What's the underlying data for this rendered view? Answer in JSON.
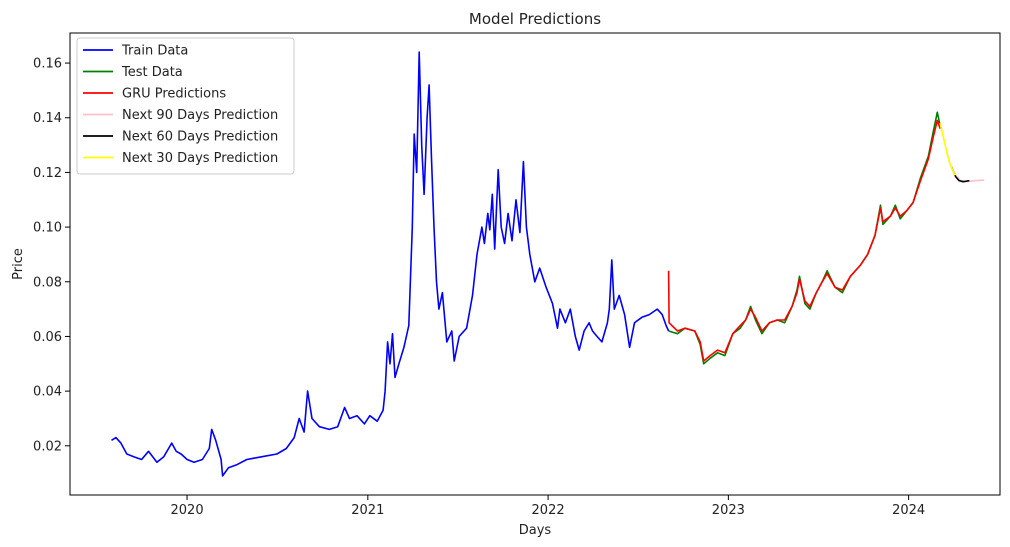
{
  "chart_data": {
    "type": "line",
    "title": "Model Predictions",
    "xlabel": "Days",
    "ylabel": "Price",
    "xlim": [
      "2019-05-09",
      "2024-07-04"
    ],
    "ylim": [
      0.002,
      0.171
    ],
    "grid": false,
    "legend_position": "top-left",
    "x_ticks": [
      {
        "date": "2020-01-01",
        "label": "2020"
      },
      {
        "date": "2021-01-01",
        "label": "2021"
      },
      {
        "date": "2022-01-01",
        "label": "2022"
      },
      {
        "date": "2023-01-01",
        "label": "2023"
      },
      {
        "date": "2024-01-01",
        "label": "2024"
      }
    ],
    "y_ticks": [
      {
        "value": 0.02,
        "label": "0.02"
      },
      {
        "value": 0.04,
        "label": "0.04"
      },
      {
        "value": 0.06,
        "label": "0.06"
      },
      {
        "value": 0.08,
        "label": "0.08"
      },
      {
        "value": 0.1,
        "label": "0.10"
      },
      {
        "value": 0.12,
        "label": "0.12"
      },
      {
        "value": 0.14,
        "label": "0.14"
      },
      {
        "value": 0.16,
        "label": "0.16"
      }
    ],
    "series": [
      {
        "name": "Train Data",
        "color": "#0000ff",
        "points": [
          [
            "2019-08-01",
            0.022
          ],
          [
            "2019-08-10",
            0.023
          ],
          [
            "2019-08-20",
            0.021
          ],
          [
            "2019-09-01",
            0.017
          ],
          [
            "2019-09-15",
            0.016
          ],
          [
            "2019-10-01",
            0.015
          ],
          [
            "2019-10-15",
            0.018
          ],
          [
            "2019-11-01",
            0.014
          ],
          [
            "2019-11-15",
            0.016
          ],
          [
            "2019-12-01",
            0.021
          ],
          [
            "2019-12-10",
            0.018
          ],
          [
            "2019-12-20",
            0.017
          ],
          [
            "2020-01-01",
            0.015
          ],
          [
            "2020-01-15",
            0.014
          ],
          [
            "2020-02-01",
            0.015
          ],
          [
            "2020-02-15",
            0.019
          ],
          [
            "2020-02-20",
            0.026
          ],
          [
            "2020-02-28",
            0.022
          ],
          [
            "2020-03-10",
            0.015
          ],
          [
            "2020-03-13",
            0.009
          ],
          [
            "2020-03-25",
            0.012
          ],
          [
            "2020-04-10",
            0.013
          ],
          [
            "2020-05-01",
            0.015
          ],
          [
            "2020-06-01",
            0.016
          ],
          [
            "2020-07-01",
            0.017
          ],
          [
            "2020-07-20",
            0.019
          ],
          [
            "2020-08-05",
            0.023
          ],
          [
            "2020-08-15",
            0.03
          ],
          [
            "2020-08-25",
            0.025
          ],
          [
            "2020-09-01",
            0.04
          ],
          [
            "2020-09-10",
            0.03
          ],
          [
            "2020-09-25",
            0.027
          ],
          [
            "2020-10-15",
            0.026
          ],
          [
            "2020-11-01",
            0.027
          ],
          [
            "2020-11-15",
            0.034
          ],
          [
            "2020-11-25",
            0.03
          ],
          [
            "2020-12-10",
            0.031
          ],
          [
            "2020-12-25",
            0.028
          ],
          [
            "2021-01-05",
            0.031
          ],
          [
            "2021-01-20",
            0.029
          ],
          [
            "2021-02-01",
            0.033
          ],
          [
            "2021-02-05",
            0.04
          ],
          [
            "2021-02-10",
            0.058
          ],
          [
            "2021-02-15",
            0.05
          ],
          [
            "2021-02-20",
            0.061
          ],
          [
            "2021-02-25",
            0.045
          ],
          [
            "2021-03-05",
            0.05
          ],
          [
            "2021-03-15",
            0.056
          ],
          [
            "2021-03-25",
            0.064
          ],
          [
            "2021-04-01",
            0.1
          ],
          [
            "2021-04-05",
            0.134
          ],
          [
            "2021-04-10",
            0.12
          ],
          [
            "2021-04-15",
            0.164
          ],
          [
            "2021-04-20",
            0.13
          ],
          [
            "2021-04-25",
            0.112
          ],
          [
            "2021-05-01",
            0.14
          ],
          [
            "2021-05-05",
            0.152
          ],
          [
            "2021-05-10",
            0.125
          ],
          [
            "2021-05-15",
            0.1
          ],
          [
            "2021-05-20",
            0.08
          ],
          [
            "2021-05-25",
            0.07
          ],
          [
            "2021-06-01",
            0.076
          ],
          [
            "2021-06-10",
            0.058
          ],
          [
            "2021-06-20",
            0.062
          ],
          [
            "2021-06-25",
            0.051
          ],
          [
            "2021-07-05",
            0.06
          ],
          [
            "2021-07-20",
            0.063
          ],
          [
            "2021-08-01",
            0.075
          ],
          [
            "2021-08-10",
            0.09
          ],
          [
            "2021-08-20",
            0.1
          ],
          [
            "2021-08-25",
            0.094
          ],
          [
            "2021-09-01",
            0.105
          ],
          [
            "2021-09-05",
            0.099
          ],
          [
            "2021-09-10",
            0.112
          ],
          [
            "2021-09-15",
            0.092
          ],
          [
            "2021-09-22",
            0.121
          ],
          [
            "2021-09-28",
            0.1
          ],
          [
            "2021-10-05",
            0.094
          ],
          [
            "2021-10-12",
            0.105
          ],
          [
            "2021-10-20",
            0.095
          ],
          [
            "2021-10-28",
            0.11
          ],
          [
            "2021-11-05",
            0.098
          ],
          [
            "2021-11-12",
            0.124
          ],
          [
            "2021-11-18",
            0.1
          ],
          [
            "2021-11-25",
            0.09
          ],
          [
            "2021-12-05",
            0.08
          ],
          [
            "2021-12-15",
            0.085
          ],
          [
            "2021-12-28",
            0.078
          ],
          [
            "2022-01-10",
            0.072
          ],
          [
            "2022-01-20",
            0.063
          ],
          [
            "2022-01-25",
            0.07
          ],
          [
            "2022-02-05",
            0.065
          ],
          [
            "2022-02-15",
            0.07
          ],
          [
            "2022-02-25",
            0.06
          ],
          [
            "2022-03-05",
            0.055
          ],
          [
            "2022-03-15",
            0.062
          ],
          [
            "2022-03-25",
            0.065
          ],
          [
            "2022-04-01",
            0.062
          ],
          [
            "2022-04-10",
            0.06
          ],
          [
            "2022-04-20",
            0.058
          ],
          [
            "2022-05-01",
            0.065
          ],
          [
            "2022-05-05",
            0.07
          ],
          [
            "2022-05-10",
            0.088
          ],
          [
            "2022-05-15",
            0.07
          ],
          [
            "2022-05-25",
            0.075
          ],
          [
            "2022-06-05",
            0.068
          ],
          [
            "2022-06-15",
            0.056
          ],
          [
            "2022-06-25",
            0.065
          ],
          [
            "2022-07-10",
            0.067
          ],
          [
            "2022-07-25",
            0.068
          ],
          [
            "2022-08-10",
            0.07
          ],
          [
            "2022-08-20",
            0.068
          ],
          [
            "2022-08-28",
            0.064
          ],
          [
            "2022-09-02",
            0.062
          ]
        ]
      },
      {
        "name": "Test Data",
        "color": "#008000",
        "points": [
          [
            "2022-09-02",
            0.062
          ],
          [
            "2022-09-20",
            0.061
          ],
          [
            "2022-10-05",
            0.063
          ],
          [
            "2022-10-25",
            0.062
          ],
          [
            "2022-11-05",
            0.057
          ],
          [
            "2022-11-12",
            0.05
          ],
          [
            "2022-11-25",
            0.052
          ],
          [
            "2022-12-10",
            0.054
          ],
          [
            "2022-12-25",
            0.053
          ],
          [
            "2023-01-10",
            0.061
          ],
          [
            "2023-01-25",
            0.063
          ],
          [
            "2023-02-05",
            0.066
          ],
          [
            "2023-02-15",
            0.071
          ],
          [
            "2023-02-25",
            0.066
          ],
          [
            "2023-03-10",
            0.061
          ],
          [
            "2023-03-25",
            0.065
          ],
          [
            "2023-04-10",
            0.066
          ],
          [
            "2023-04-25",
            0.065
          ],
          [
            "2023-05-10",
            0.071
          ],
          [
            "2023-05-20",
            0.077
          ],
          [
            "2023-05-25",
            0.082
          ],
          [
            "2023-06-05",
            0.072
          ],
          [
            "2023-06-15",
            0.07
          ],
          [
            "2023-06-28",
            0.076
          ],
          [
            "2023-07-10",
            0.08
          ],
          [
            "2023-07-20",
            0.084
          ],
          [
            "2023-08-05",
            0.078
          ],
          [
            "2023-08-20",
            0.076
          ],
          [
            "2023-09-05",
            0.082
          ],
          [
            "2023-09-25",
            0.086
          ],
          [
            "2023-10-10",
            0.09
          ],
          [
            "2023-10-25",
            0.097
          ],
          [
            "2023-11-05",
            0.108
          ],
          [
            "2023-11-10",
            0.101
          ],
          [
            "2023-11-25",
            0.104
          ],
          [
            "2023-12-05",
            0.108
          ],
          [
            "2023-12-15",
            0.103
          ],
          [
            "2023-12-28",
            0.106
          ],
          [
            "2024-01-10",
            0.109
          ],
          [
            "2024-01-25",
            0.118
          ],
          [
            "2024-02-10",
            0.126
          ],
          [
            "2024-02-20",
            0.135
          ],
          [
            "2024-02-28",
            0.142
          ],
          [
            "2024-03-05",
            0.137
          ]
        ]
      },
      {
        "name": "GRU Predictions",
        "color": "#ff0000",
        "points": [
          [
            "2022-09-02",
            0.084
          ],
          [
            "2022-09-03",
            0.065
          ],
          [
            "2022-09-20",
            0.062
          ],
          [
            "2022-10-05",
            0.063
          ],
          [
            "2022-10-25",
            0.062
          ],
          [
            "2022-11-05",
            0.058
          ],
          [
            "2022-11-12",
            0.051
          ],
          [
            "2022-11-25",
            0.053
          ],
          [
            "2022-12-10",
            0.055
          ],
          [
            "2022-12-25",
            0.054
          ],
          [
            "2023-01-10",
            0.061
          ],
          [
            "2023-01-25",
            0.064
          ],
          [
            "2023-02-05",
            0.066
          ],
          [
            "2023-02-15",
            0.07
          ],
          [
            "2023-02-25",
            0.067
          ],
          [
            "2023-03-10",
            0.062
          ],
          [
            "2023-03-25",
            0.065
          ],
          [
            "2023-04-10",
            0.066
          ],
          [
            "2023-04-25",
            0.066
          ],
          [
            "2023-05-10",
            0.071
          ],
          [
            "2023-05-20",
            0.076
          ],
          [
            "2023-05-25",
            0.081
          ],
          [
            "2023-06-05",
            0.073
          ],
          [
            "2023-06-15",
            0.071
          ],
          [
            "2023-06-28",
            0.076
          ],
          [
            "2023-07-10",
            0.08
          ],
          [
            "2023-07-20",
            0.083
          ],
          [
            "2023-08-05",
            0.078
          ],
          [
            "2023-08-20",
            0.077
          ],
          [
            "2023-09-05",
            0.082
          ],
          [
            "2023-09-25",
            0.086
          ],
          [
            "2023-10-10",
            0.09
          ],
          [
            "2023-10-25",
            0.097
          ],
          [
            "2023-11-05",
            0.107
          ],
          [
            "2023-11-10",
            0.102
          ],
          [
            "2023-11-25",
            0.104
          ],
          [
            "2023-12-05",
            0.107
          ],
          [
            "2023-12-15",
            0.104
          ],
          [
            "2023-12-28",
            0.106
          ],
          [
            "2024-01-10",
            0.109
          ],
          [
            "2024-01-25",
            0.117
          ],
          [
            "2024-02-10",
            0.125
          ],
          [
            "2024-02-20",
            0.133
          ],
          [
            "2024-02-28",
            0.139
          ],
          [
            "2024-03-05",
            0.136
          ]
        ]
      },
      {
        "name": "Next 90 Days Prediction",
        "color": "#ffc0cb",
        "points": [
          [
            "2024-03-05",
            0.138
          ],
          [
            "2024-03-15",
            0.13
          ],
          [
            "2024-03-25",
            0.123
          ],
          [
            "2024-04-05",
            0.119
          ],
          [
            "2024-04-15",
            0.117
          ],
          [
            "2024-04-25",
            0.1167
          ],
          [
            "2024-05-05",
            0.1168
          ],
          [
            "2024-05-15",
            0.117
          ],
          [
            "2024-05-25",
            0.1171
          ],
          [
            "2024-06-02",
            0.1172
          ]
        ]
      },
      {
        "name": "Next 60 Days Prediction",
        "color": "#000000",
        "points": [
          [
            "2024-03-28",
            0.122
          ],
          [
            "2024-04-05",
            0.1185
          ],
          [
            "2024-04-12",
            0.117
          ],
          [
            "2024-04-20",
            0.1166
          ],
          [
            "2024-04-27",
            0.1168
          ],
          [
            "2024-05-03",
            0.117
          ]
        ]
      },
      {
        "name": "Next 30 Days Prediction",
        "color": "#ffff00",
        "points": [
          [
            "2024-03-05",
            0.138
          ],
          [
            "2024-03-10",
            0.134
          ],
          [
            "2024-03-15",
            0.13
          ],
          [
            "2024-03-20",
            0.126
          ],
          [
            "2024-03-25",
            0.123
          ],
          [
            "2024-03-30",
            0.121
          ],
          [
            "2024-04-04",
            0.119
          ]
        ]
      }
    ]
  }
}
